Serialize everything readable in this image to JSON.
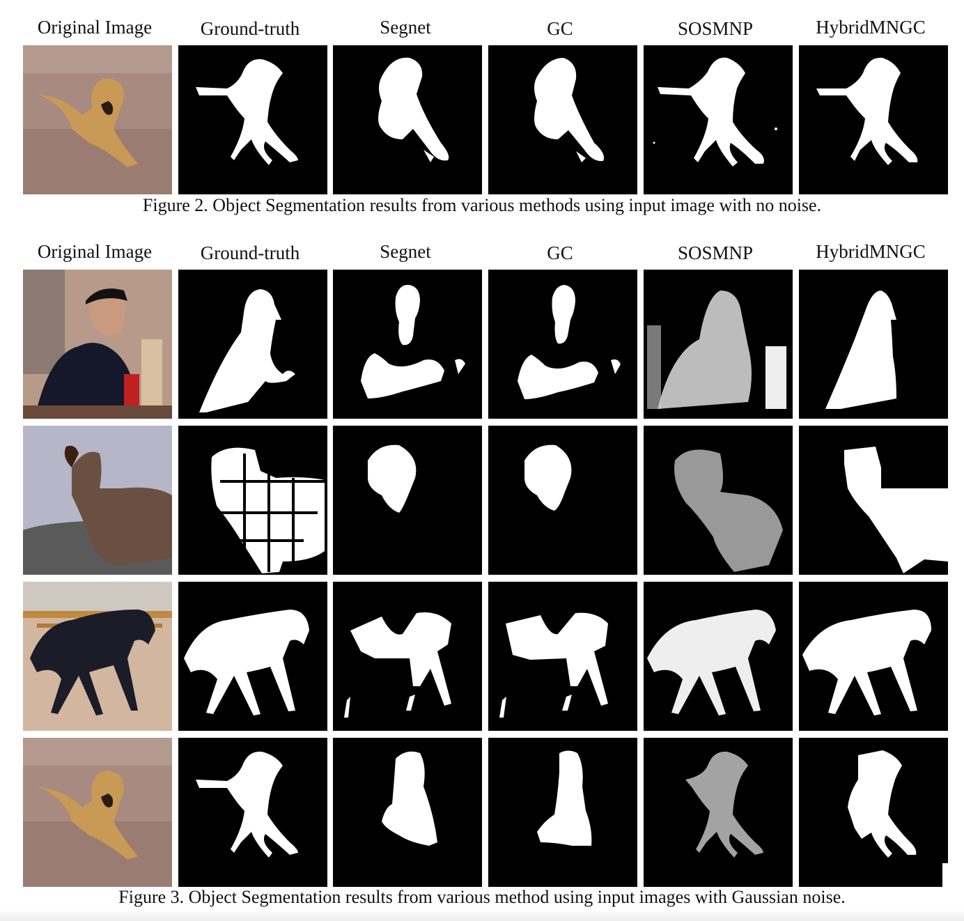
{
  "figure2": {
    "headers": [
      "Original Image",
      "Ground-truth",
      "Segnet",
      "GC",
      "SOSMNP",
      "HybridMNGC"
    ],
    "caption": "Figure 2. Object Segmentation results from various methods using input image with no noise."
  },
  "figure3": {
    "headers": [
      "Original Image",
      "Ground-truth",
      "Segnet",
      "GC",
      "SOSMNP",
      "HybridMNGC"
    ],
    "caption": "Figure 3. Object Segmentation results from various method using input images with Gaussian noise."
  }
}
